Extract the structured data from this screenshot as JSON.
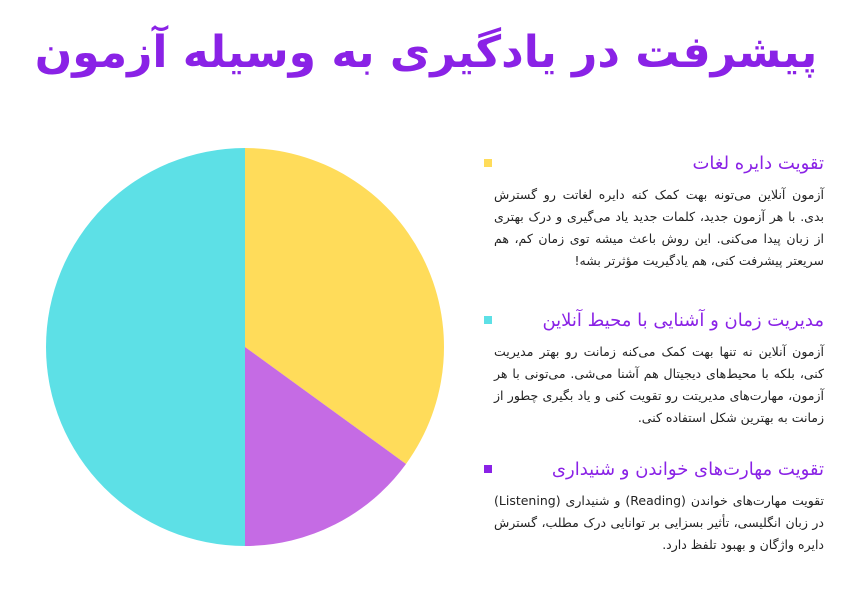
{
  "page": {
    "title": "پیشرفت در یادگیری به وسیله آزمون"
  },
  "sections": [
    {
      "title": "تقویت دایره لغات",
      "body": "آزمون آنلاین می‌تونه بهت کمک کنه دایره لغاتت رو گسترش بدی. با هر آزمون جدید، کلمات جدید یاد می‌گیری و درک بهتری از زبان پیدا می‌کنی. این روش باعث میشه توی زمان کم، هم سریعتر پیشرفت کنی، هم یادگیریت مؤثرتر بشه!",
      "color": "#ffdc5a"
    },
    {
      "title": "مدیریت زمان و آشنایی با محیط آنلاین",
      "body": "آزمون آنلاین نه تنها بهت کمک می‌کنه زمانت رو بهتر مدیریت کنی، بلکه با محیط‌های دیجیتال هم آشنا می‌شی. می‌تونی با هر آزمون، مهارت‌های مدیریتت رو تقویت کنی و یاد بگیری چطور از زمانت به بهترین شکل استفاده کنی.",
      "color": "#5de0e6"
    },
    {
      "title": "تقویت مهارت‌های خواندن و شنیداری",
      "body": "تقویت مهارت‌های خواندن (Reading) و شنیداری (Listening) در زبان انگلیسی، تأثیر بسزایی بر توانایی درک مطلب، گسترش دایره واژگان و بهبود تلفظ دارد.",
      "color": "#8a22e6"
    }
  ],
  "chart_data": {
    "type": "pie",
    "title": "",
    "slices": [
      {
        "value": 35,
        "color": "#ffdc5a"
      },
      {
        "value": 15,
        "color": "#c56be4"
      },
      {
        "value": 50,
        "color": "#5de0e6"
      }
    ],
    "start_angle_deg": 0,
    "direction": "clockwise"
  }
}
